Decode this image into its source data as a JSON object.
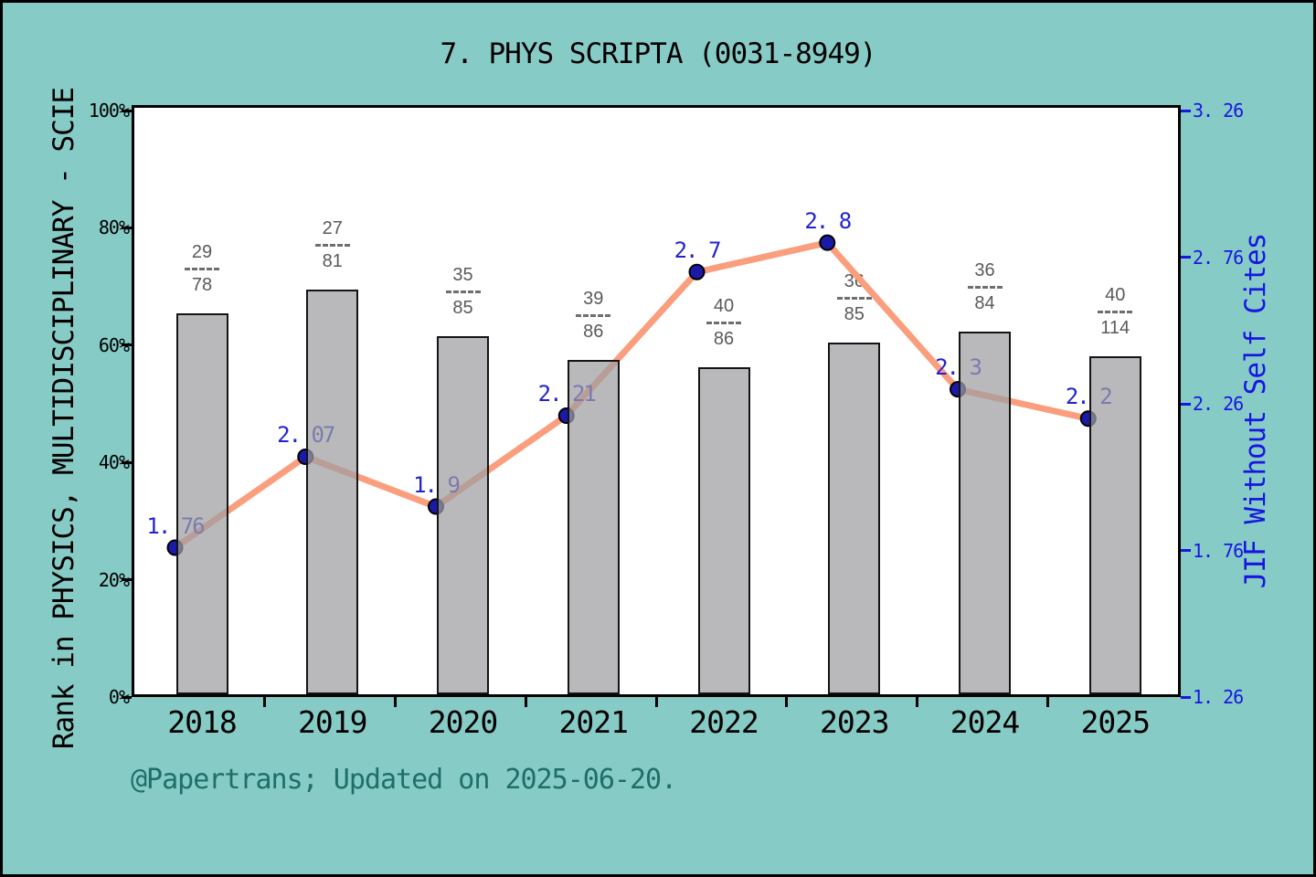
{
  "title": "7. PHYS SCRIPTA (0031-8949)",
  "footer": "@Papertrans; Updated on 2025-06-20.",
  "colors": {
    "background": "#87CBC6",
    "plot_background": "#FFFFFF",
    "frame": "#000000",
    "bar_fill": "#9E9EA1",
    "bar_border": "#141414",
    "line": "#FA9E7D",
    "marker_fill": "#1A1AA6",
    "marker_border": "#000000",
    "value_label": "#2323CE",
    "fraction_label": "#5A5A5A",
    "right_axis_text": "#1717E0",
    "left_axis_text": "#000000",
    "footer_text": "#1E6F68"
  },
  "chart_data": {
    "type": "bar+line",
    "categories": [
      "2018",
      "2019",
      "2020",
      "2021",
      "2022",
      "2023",
      "2024",
      "2025"
    ],
    "series": [
      {
        "name": "Rank in PHYSICS, MULTIDISCIPLINARY - SCIE",
        "type": "bar",
        "rank": [
          29,
          27,
          35,
          39,
          40,
          36,
          36,
          40
        ],
        "total": [
          78,
          81,
          85,
          86,
          86,
          85,
          84,
          114
        ],
        "bar_height_percent": [
          65.0,
          69.0,
          61.1,
          57.0,
          55.8,
          60.0,
          61.8,
          57.6
        ]
      },
      {
        "name": "JIF Without Self Cites",
        "type": "line",
        "values": [
          1.76,
          2.07,
          1.9,
          2.21,
          2.7,
          2.8,
          2.3,
          2.2
        ],
        "point_labels": [
          "1. 76",
          "2. 07",
          "1. 9",
          "2. 21",
          "2. 7",
          "2. 8",
          "2. 3",
          "2. 2"
        ]
      }
    ],
    "left_axis": {
      "label": "Rank in PHYSICS, MULTIDISCIPLINARY - SCIE",
      "tick_labels": [
        "0%",
        "20%",
        "40%",
        "60%",
        "80%",
        "100%"
      ],
      "tick_values": [
        0,
        20,
        40,
        60,
        80,
        100
      ],
      "range": [
        0,
        100
      ]
    },
    "right_axis": {
      "label": "JIF Without Self Cites",
      "tick_labels": [
        "1. 26",
        "1. 76",
        "2. 26",
        "2. 76",
        "3. 26"
      ],
      "tick_values": [
        1.26,
        1.76,
        2.26,
        2.76,
        3.26
      ],
      "range": [
        1.26,
        3.26
      ]
    },
    "x_axis": {
      "tick_style": "between-categories"
    },
    "grid": false,
    "legend": false
  }
}
